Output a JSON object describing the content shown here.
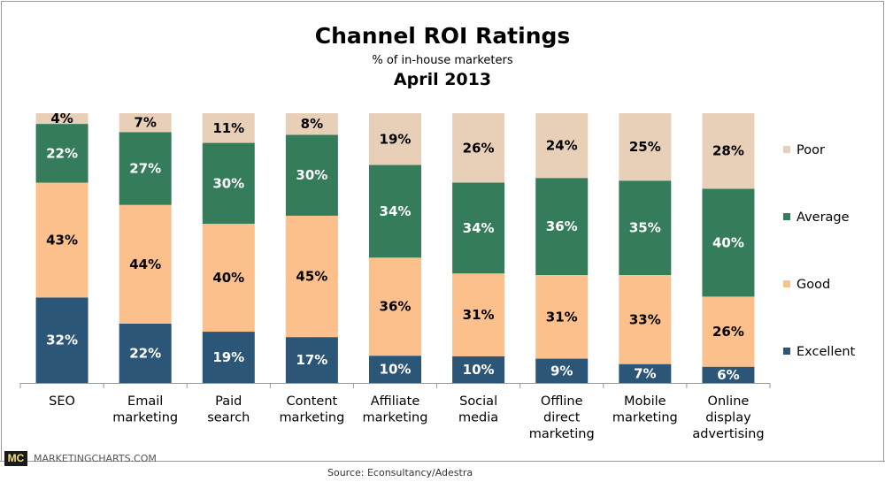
{
  "chart_data": {
    "type": "bar",
    "stacked": true,
    "title": "Channel ROI Ratings",
    "subtitle": "% of in-house marketers",
    "date": "April 2013",
    "categories": [
      "SEO",
      "Email marketing",
      "Paid search",
      "Content marketing",
      "Affiliate marketing",
      "Social media",
      "Offline direct marketing",
      "Mobile marketing",
      "Online display advertising"
    ],
    "category_lines": [
      [
        "SEO"
      ],
      [
        "Email",
        "marketing"
      ],
      [
        "Paid",
        "search"
      ],
      [
        "Content",
        "marketing"
      ],
      [
        "Affiliate",
        "marketing"
      ],
      [
        "Social",
        "media"
      ],
      [
        "Offline",
        "direct",
        "marketing"
      ],
      [
        "Mobile",
        "marketing"
      ],
      [
        "Online",
        "display",
        "advertising"
      ]
    ],
    "series": [
      {
        "name": "Excellent",
        "color": "#2C5678",
        "label_color": "#ffffff",
        "values": [
          32,
          22,
          19,
          17,
          10,
          10,
          9,
          7,
          6
        ]
      },
      {
        "name": "Good",
        "color": "#FCC08C",
        "label_color": "#000000",
        "values": [
          43,
          44,
          40,
          45,
          36,
          31,
          31,
          33,
          26
        ]
      },
      {
        "name": "Average",
        "color": "#357D5A",
        "label_color": "#ffffff",
        "values": [
          22,
          27,
          30,
          30,
          34,
          34,
          36,
          35,
          40
        ]
      },
      {
        "name": "Poor",
        "color": "#E8D0B8",
        "label_color": "#000000",
        "values": [
          4,
          7,
          11,
          8,
          19,
          26,
          24,
          25,
          28
        ]
      }
    ],
    "value_suffix": "%",
    "legend_position": "right",
    "grid": false
  },
  "footer": {
    "logo": "MC",
    "site": "MARKETINGCHARTS.COM",
    "source": "Source:  Econsultancy/Adestra"
  }
}
